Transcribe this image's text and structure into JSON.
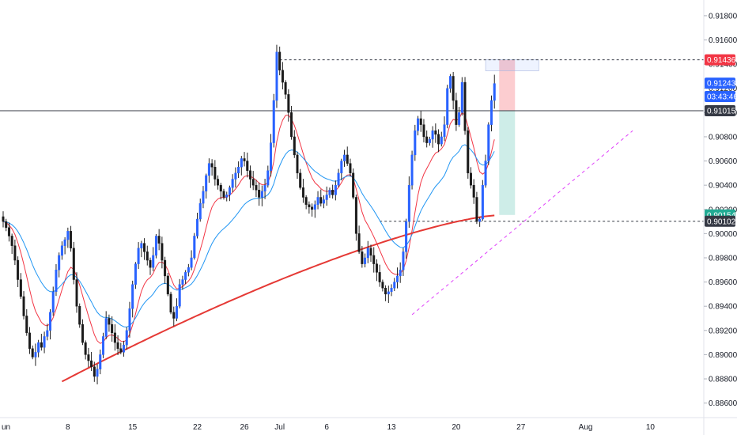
{
  "chart_data": {
    "type": "candlestick",
    "y_axis": {
      "range": [
        0.8848,
        0.9193
      ],
      "ticks": [
        "0.91800",
        "0.91600",
        "0.91400",
        "0.91200",
        "0.91000",
        "0.90800",
        "0.90600",
        "0.90400",
        "0.90200",
        "0.90000",
        "0.89800",
        "0.89600",
        "0.89400",
        "0.89200",
        "0.89000",
        "0.88800",
        "0.88600"
      ],
      "tick_values": [
        0.918,
        0.916,
        0.914,
        0.912,
        0.91,
        0.908,
        0.906,
        0.904,
        0.902,
        0.9,
        0.898,
        0.896,
        0.894,
        0.892,
        0.89,
        0.888,
        0.886
      ]
    },
    "x_axis": {
      "labels": [
        "un",
        "8",
        "15",
        "22",
        "26",
        "Jul",
        "6",
        "13",
        "20",
        "27",
        "Aug",
        "10"
      ],
      "label_bar_index": [
        -1,
        22,
        44,
        66,
        82,
        94,
        110,
        132,
        154,
        176,
        198,
        220
      ]
    },
    "price_badges": [
      {
        "label": "0.91436",
        "value": 0.91436,
        "color": "#f23645"
      },
      {
        "label": "0.91243",
        "value": 0.91243,
        "color": "#2962ff"
      },
      {
        "label": "03:43:46",
        "value": 0.91133,
        "color": "#2962ff"
      },
      {
        "label": "0.91015",
        "value": 0.91015,
        "color": "#363a45"
      },
      {
        "label": "0.90154",
        "value": 0.90154,
        "color": "#22ab94"
      },
      {
        "label": "0.90102",
        "value": 0.90102,
        "color": "#363a45"
      }
    ],
    "levels": {
      "horizontal_solid": 0.91015,
      "dashed_high": 0.91436,
      "dashed_low": 0.90102
    },
    "position": {
      "entry": 0.91015,
      "stop": 0.91436,
      "target": 0.90154
    },
    "colors": {
      "candle": "#2962ff",
      "ma_fast": "#f23645",
      "ma_mid": "#2196f3",
      "ma_slow": "#e53935",
      "trendline": "#e040fb"
    },
    "closes": [
      0.901,
      0.9005,
      0.8998,
      0.899,
      0.8978,
      0.8962,
      0.8948,
      0.8932,
      0.8918,
      0.8905,
      0.8898,
      0.8902,
      0.891,
      0.8906,
      0.8915,
      0.892,
      0.8935,
      0.8952,
      0.897,
      0.8982,
      0.899,
      0.8995,
      0.9002,
      0.8988,
      0.8962,
      0.894,
      0.8925,
      0.891,
      0.89,
      0.8895,
      0.889,
      0.8882,
      0.8888,
      0.89,
      0.8915,
      0.893,
      0.8925,
      0.8918,
      0.891,
      0.8905,
      0.8902,
      0.8908,
      0.892,
      0.8938,
      0.8958,
      0.8975,
      0.8988,
      0.8992,
      0.8985,
      0.8978,
      0.8972,
      0.8982,
      0.8998,
      0.8992,
      0.8978,
      0.8965,
      0.895,
      0.8935,
      0.893,
      0.894,
      0.8958,
      0.8962,
      0.8968,
      0.8972,
      0.898,
      0.8998,
      0.9012,
      0.9025,
      0.9035,
      0.9048,
      0.9058,
      0.9055,
      0.9045,
      0.904,
      0.9035,
      0.903,
      0.9032,
      0.9038,
      0.9045,
      0.905,
      0.9055,
      0.9062,
      0.906,
      0.9052,
      0.9045,
      0.904,
      0.9036,
      0.903,
      0.9035,
      0.904,
      0.9052,
      0.9075,
      0.911,
      0.915,
      0.9135,
      0.9125,
      0.9115,
      0.91,
      0.908,
      0.9065,
      0.905,
      0.9038,
      0.903,
      0.9024,
      0.9022,
      0.902,
      0.9024,
      0.903,
      0.9025,
      0.9028,
      0.9032,
      0.9036,
      0.9032,
      0.904,
      0.905,
      0.906,
      0.9065,
      0.9058,
      0.905,
      0.903,
      0.9,
      0.8985,
      0.8975,
      0.898,
      0.8988,
      0.8982,
      0.8975,
      0.8968,
      0.896,
      0.8955,
      0.895,
      0.8952,
      0.8955,
      0.896,
      0.8965,
      0.897,
      0.8985,
      0.901,
      0.904,
      0.9065,
      0.9085,
      0.9095,
      0.909,
      0.908,
      0.9075,
      0.9078,
      0.9085,
      0.9082,
      0.9074,
      0.908,
      0.909,
      0.912,
      0.913,
      0.911,
      0.909,
      0.91,
      0.9125,
      0.9085,
      0.905,
      0.904,
      0.903,
      0.901,
      0.9012,
      0.904,
      0.906,
      0.909,
      0.911,
      0.9124
    ]
  }
}
